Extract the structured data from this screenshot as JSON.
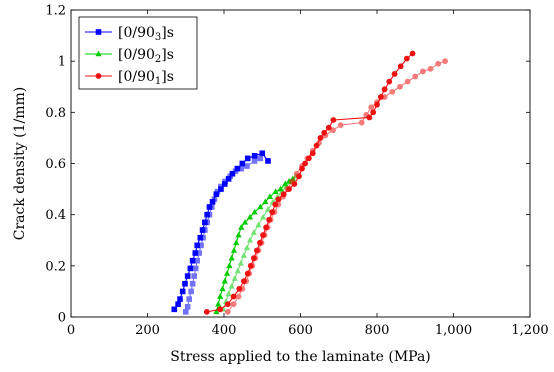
{
  "chart_data": {
    "type": "line",
    "xlabel": "Stress applied to the laminate (MPa)",
    "ylabel": "Crack density (1/mm)",
    "xlim": [
      0,
      1200
    ],
    "ylim": [
      0,
      1.2
    ],
    "xticks": [
      0,
      200,
      400,
      600,
      800,
      1000,
      1200
    ],
    "xtick_labels": [
      "0",
      "200",
      "400",
      "600",
      "800",
      "1,000",
      "1,200"
    ],
    "yticks": [
      0,
      0.2,
      0.4,
      0.6,
      0.8,
      1.0,
      1.2
    ],
    "ytick_labels": [
      "0",
      "0.2",
      "0.4",
      "0.6",
      "0.8",
      "1",
      "1.2"
    ],
    "grid": false,
    "legend_position": "top-left",
    "series": [
      {
        "name": "[0/90₃]s",
        "legend": {
          "pre": "[0/90",
          "sub": "3",
          "post": "]s"
        },
        "color": "#0000ff",
        "marker": "square",
        "curves": [
          {
            "opacity": 1.0,
            "points": [
              [
                270,
                0.03
              ],
              [
                280,
                0.05
              ],
              [
                285,
                0.07
              ],
              [
                292,
                0.1
              ],
              [
                298,
                0.13
              ],
              [
                305,
                0.16
              ],
              [
                312,
                0.19
              ],
              [
                318,
                0.22
              ],
              [
                325,
                0.25
              ],
              [
                330,
                0.28
              ],
              [
                338,
                0.31
              ],
              [
                344,
                0.34
              ],
              [
                350,
                0.37
              ],
              [
                356,
                0.4
              ],
              [
                362,
                0.43
              ],
              [
                370,
                0.45
              ],
              [
                380,
                0.48
              ],
              [
                392,
                0.5
              ],
              [
                402,
                0.52
              ],
              [
                412,
                0.54
              ],
              [
                422,
                0.56
              ],
              [
                435,
                0.58
              ],
              [
                448,
                0.6
              ],
              [
                462,
                0.62
              ],
              [
                480,
                0.63
              ],
              [
                500,
                0.64
              ],
              [
                515,
                0.61
              ]
            ]
          },
          {
            "opacity": 0.55,
            "points": [
              [
                300,
                0.02
              ],
              [
                305,
                0.04
              ],
              [
                309,
                0.07
              ],
              [
                314,
                0.1
              ],
              [
                318,
                0.13
              ],
              [
                322,
                0.16
              ],
              [
                326,
                0.19
              ],
              [
                330,
                0.22
              ],
              [
                335,
                0.25
              ],
              [
                340,
                0.28
              ],
              [
                345,
                0.31
              ],
              [
                350,
                0.34
              ],
              [
                356,
                0.37
              ],
              [
                362,
                0.4
              ],
              [
                368,
                0.43
              ],
              [
                375,
                0.46
              ],
              [
                383,
                0.49
              ],
              [
                392,
                0.51
              ],
              [
                403,
                0.53
              ],
              [
                416,
                0.55
              ],
              [
                430,
                0.57
              ],
              [
                445,
                0.58
              ],
              [
                460,
                0.59
              ],
              [
                480,
                0.61
              ],
              [
                495,
                0.62
              ]
            ]
          }
        ]
      },
      {
        "name": "[0/90₂]s",
        "legend": {
          "pre": "[0/90",
          "sub": "2",
          "post": "]s"
        },
        "color": "#00cc00",
        "marker": "triangle",
        "curves": [
          {
            "opacity": 1.0,
            "points": [
              [
                380,
                0.02
              ],
              [
                385,
                0.05
              ],
              [
                390,
                0.08
              ],
              [
                396,
                0.11
              ],
              [
                402,
                0.14
              ],
              [
                408,
                0.17
              ],
              [
                414,
                0.2
              ],
              [
                420,
                0.23
              ],
              [
                426,
                0.26
              ],
              [
                432,
                0.29
              ],
              [
                438,
                0.32
              ],
              [
                445,
                0.35
              ],
              [
                455,
                0.37
              ],
              [
                468,
                0.39
              ],
              [
                480,
                0.41
              ],
              [
                495,
                0.43
              ],
              [
                508,
                0.45
              ],
              [
                520,
                0.47
              ],
              [
                535,
                0.49
              ],
              [
                548,
                0.5
              ],
              [
                560,
                0.52
              ],
              [
                570,
                0.53
              ],
              [
                580,
                0.54
              ]
            ]
          },
          {
            "opacity": 0.55,
            "points": [
              [
                398,
                0.03
              ],
              [
                405,
                0.06
              ],
              [
                412,
                0.09
              ],
              [
                420,
                0.12
              ],
              [
                428,
                0.15
              ],
              [
                436,
                0.18
              ],
              [
                444,
                0.21
              ],
              [
                452,
                0.24
              ],
              [
                460,
                0.27
              ],
              [
                468,
                0.3
              ],
              [
                478,
                0.33
              ],
              [
                490,
                0.36
              ],
              [
                502,
                0.39
              ],
              [
                515,
                0.42
              ],
              [
                528,
                0.45
              ],
              [
                540,
                0.47
              ],
              [
                552,
                0.49
              ],
              [
                563,
                0.51
              ],
              [
                575,
                0.53
              ],
              [
                588,
                0.55
              ]
            ]
          }
        ]
      },
      {
        "name": "[0/90₁]s",
        "legend": {
          "pre": "[0/90",
          "sub": "1",
          "post": "]s"
        },
        "color": "#ee1111",
        "marker": "circle",
        "curves": [
          {
            "opacity": 1.0,
            "points": [
              [
                355,
                0.02
              ],
              [
                390,
                0.03
              ],
              [
                410,
                0.05
              ],
              [
                425,
                0.08
              ],
              [
                440,
                0.11
              ],
              [
                452,
                0.14
              ],
              [
                462,
                0.17
              ],
              [
                470,
                0.2
              ],
              [
                478,
                0.23
              ],
              [
                486,
                0.26
              ],
              [
                494,
                0.29
              ],
              [
                502,
                0.32
              ],
              [
                510,
                0.35
              ],
              [
                518,
                0.38
              ],
              [
                526,
                0.41
              ],
              [
                534,
                0.44
              ],
              [
                542,
                0.46
              ],
              [
                556,
                0.48
              ],
              [
                570,
                0.5
              ],
              [
                584,
                0.52
              ],
              [
                596,
                0.55
              ],
              [
                604,
                0.58
              ],
              [
                612,
                0.6
              ],
              [
                622,
                0.62
              ],
              [
                632,
                0.64
              ],
              [
                642,
                0.67
              ],
              [
                652,
                0.7
              ],
              [
                662,
                0.72
              ],
              [
                674,
                0.74
              ],
              [
                686,
                0.77
              ],
              [
                780,
                0.78
              ],
              [
                790,
                0.8
              ],
              [
                800,
                0.83
              ],
              [
                810,
                0.86
              ],
              [
                820,
                0.89
              ],
              [
                832,
                0.92
              ],
              [
                846,
                0.95
              ],
              [
                862,
                0.98
              ],
              [
                878,
                1.01
              ],
              [
                893,
                1.03
              ]
            ]
          },
          {
            "opacity": 0.55,
            "points": [
              [
                410,
                0.02
              ],
              [
                425,
                0.05
              ],
              [
                438,
                0.08
              ],
              [
                448,
                0.11
              ],
              [
                458,
                0.14
              ],
              [
                466,
                0.17
              ],
              [
                474,
                0.2
              ],
              [
                482,
                0.23
              ],
              [
                490,
                0.26
              ],
              [
                498,
                0.29
              ],
              [
                506,
                0.32
              ],
              [
                514,
                0.35
              ],
              [
                522,
                0.38
              ],
              [
                532,
                0.41
              ],
              [
                542,
                0.44
              ],
              [
                554,
                0.47
              ],
              [
                566,
                0.5
              ],
              [
                578,
                0.53
              ],
              [
                590,
                0.56
              ],
              [
                604,
                0.59
              ],
              [
                618,
                0.62
              ],
              [
                632,
                0.65
              ],
              [
                648,
                0.68
              ],
              [
                665,
                0.71
              ],
              [
                685,
                0.73
              ],
              [
                705,
                0.75
              ],
              [
                760,
                0.76
              ],
              [
                772,
                0.79
              ],
              [
                785,
                0.82
              ],
              [
                800,
                0.84
              ],
              [
                820,
                0.86
              ],
              [
                840,
                0.88
              ],
              [
                860,
                0.9
              ],
              [
                880,
                0.92
              ],
              [
                900,
                0.94
              ],
              [
                920,
                0.96
              ],
              [
                940,
                0.97
              ],
              [
                960,
                0.99
              ],
              [
                978,
                1.0
              ]
            ]
          }
        ]
      }
    ]
  }
}
